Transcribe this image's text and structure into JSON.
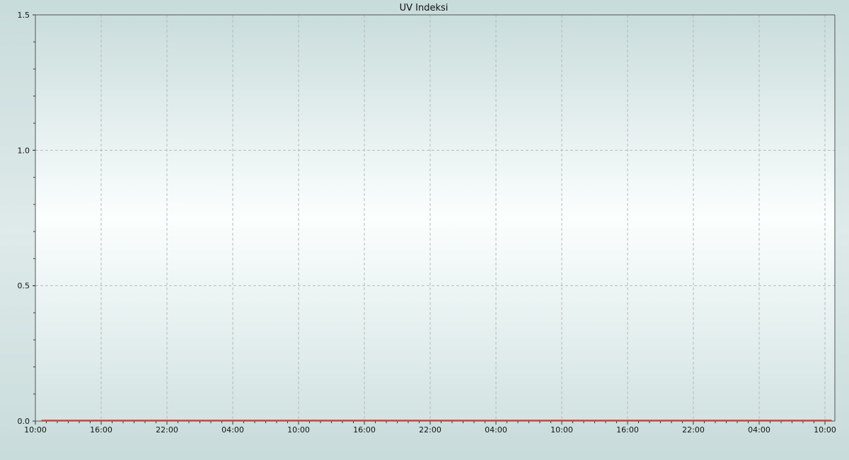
{
  "chart_data": {
    "type": "line",
    "title": "UV Indeksi",
    "xlabel": "",
    "ylabel": "",
    "ylim": [
      0,
      1.5
    ],
    "yticks": [
      "0.0",
      "0.5",
      "1.0",
      "1.5"
    ],
    "xticks": [
      "10:00",
      "16:00",
      "22:00",
      "04:00",
      "10:00",
      "16:00",
      "22:00",
      "04:00",
      "10:00",
      "16:00",
      "22:00",
      "04:00",
      "10:00"
    ],
    "grid": true,
    "series": [
      {
        "color": "#e8403c",
        "x": [
          "10:35",
          "16:00",
          "22:00",
          "04:00",
          "10:00",
          "16:00",
          "22:00",
          "04:00",
          "10:00",
          "16:00",
          "22:00",
          "04:00",
          "10:00",
          "10:35"
        ],
        "values": [
          0,
          0,
          0,
          0,
          0,
          0,
          0,
          0,
          0,
          0,
          0,
          0,
          0,
          0
        ]
      }
    ]
  }
}
